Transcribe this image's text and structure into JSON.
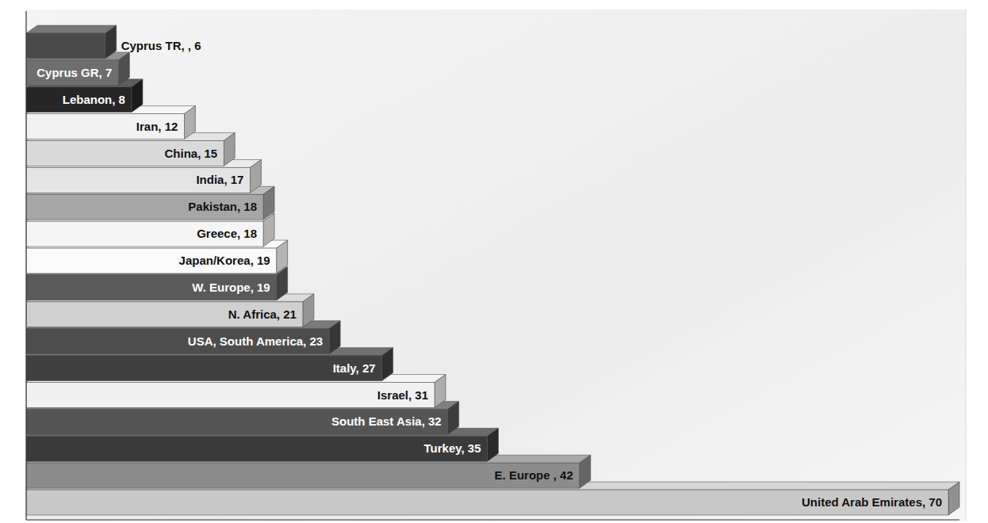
{
  "chart_data": {
    "type": "bar",
    "orientation": "horizontal",
    "categories": [
      "Cyprus TR",
      "Cyprus GR",
      "Lebanon",
      "Iran",
      "China",
      "India",
      "Pakistan",
      "Greece",
      "Japan/Korea",
      "W. Europe",
      "N. Africa",
      "USA, South America",
      "Italy",
      "Israel",
      "South East Asia",
      "Turkey",
      "E. Europe",
      "United Arab Emirates"
    ],
    "values": [
      6,
      7,
      8,
      12,
      15,
      17,
      18,
      18,
      19,
      19,
      21,
      23,
      27,
      31,
      32,
      35,
      42,
      70
    ],
    "value_labels": [
      "Cyprus TR, , 6",
      "Cyprus GR, 7",
      "Lebanon, 8",
      "Iran, 12",
      "China, 15",
      "India, 17",
      "Pakistan, 18",
      "Greece, 18",
      "Japan/Korea, 19",
      "W. Europe, 19",
      "N. Africa, 21",
      "USA, South America, 23",
      "Italy, 27",
      "Israel, 31",
      "South East Asia, 32",
      "Turkey, 35",
      "E. Europe , 42",
      "United Arab Emirates, 70"
    ],
    "colors": [
      "#4a4a4a",
      "#6e6e6e",
      "#262626",
      "#f2f2f2",
      "#d9d9d9",
      "#e4e4e4",
      "#a6a6a6",
      "#f5f5f5",
      "#fafafa",
      "#5a5a5a",
      "#d0d0d0",
      "#4d4d4d",
      "#404040",
      "#f0f0f0",
      "#555555",
      "#3a3a3a",
      "#8c8c8c",
      "#c8c8c8"
    ],
    "xlim": [
      0,
      70
    ],
    "data_labels": true,
    "tick_labels": false,
    "grid": false
  }
}
